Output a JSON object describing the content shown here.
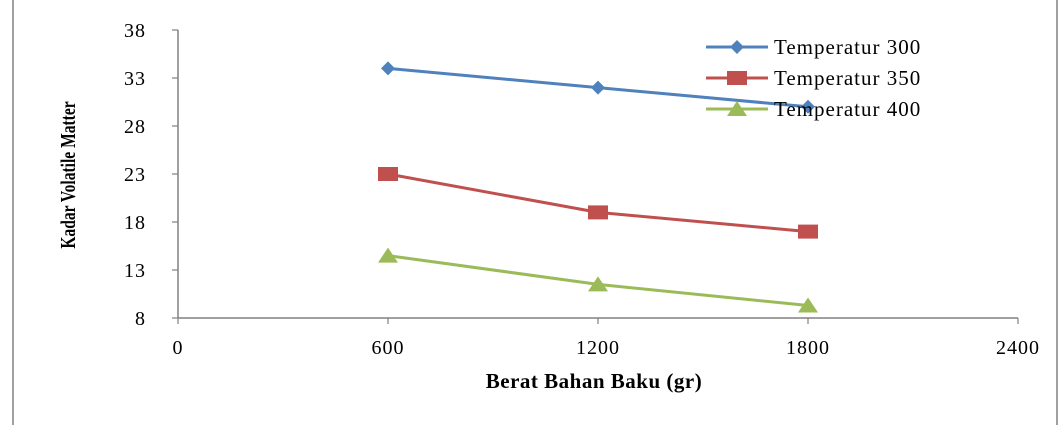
{
  "chart_data": {
    "type": "line",
    "title": "",
    "xlabel": "Berat Bahan Baku (gr)",
    "ylabel": "Kadar Volatile Matter",
    "xlim": [
      0,
      2400
    ],
    "ylim": [
      8,
      38
    ],
    "xticks": [
      0,
      600,
      1200,
      1800,
      2400
    ],
    "yticks": [
      8,
      13,
      18,
      23,
      28,
      33,
      38
    ],
    "grid": false,
    "legend_position": "top-right",
    "series": [
      {
        "name": "Temperatur 300",
        "color": "#4F81BD",
        "marker": "diamond",
        "x": [
          600,
          1200,
          1800
        ],
        "values": [
          34,
          32,
          30
        ]
      },
      {
        "name": "Temperatur 350",
        "color": "#C0504D",
        "marker": "square",
        "x": [
          600,
          1200,
          1800
        ],
        "values": [
          23,
          19,
          17
        ]
      },
      {
        "name": "Temperatur 400",
        "color": "#9BBB59",
        "marker": "triangle",
        "x": [
          600,
          1200,
          1800
        ],
        "values": [
          14.5,
          11.5,
          9.3
        ]
      }
    ]
  }
}
